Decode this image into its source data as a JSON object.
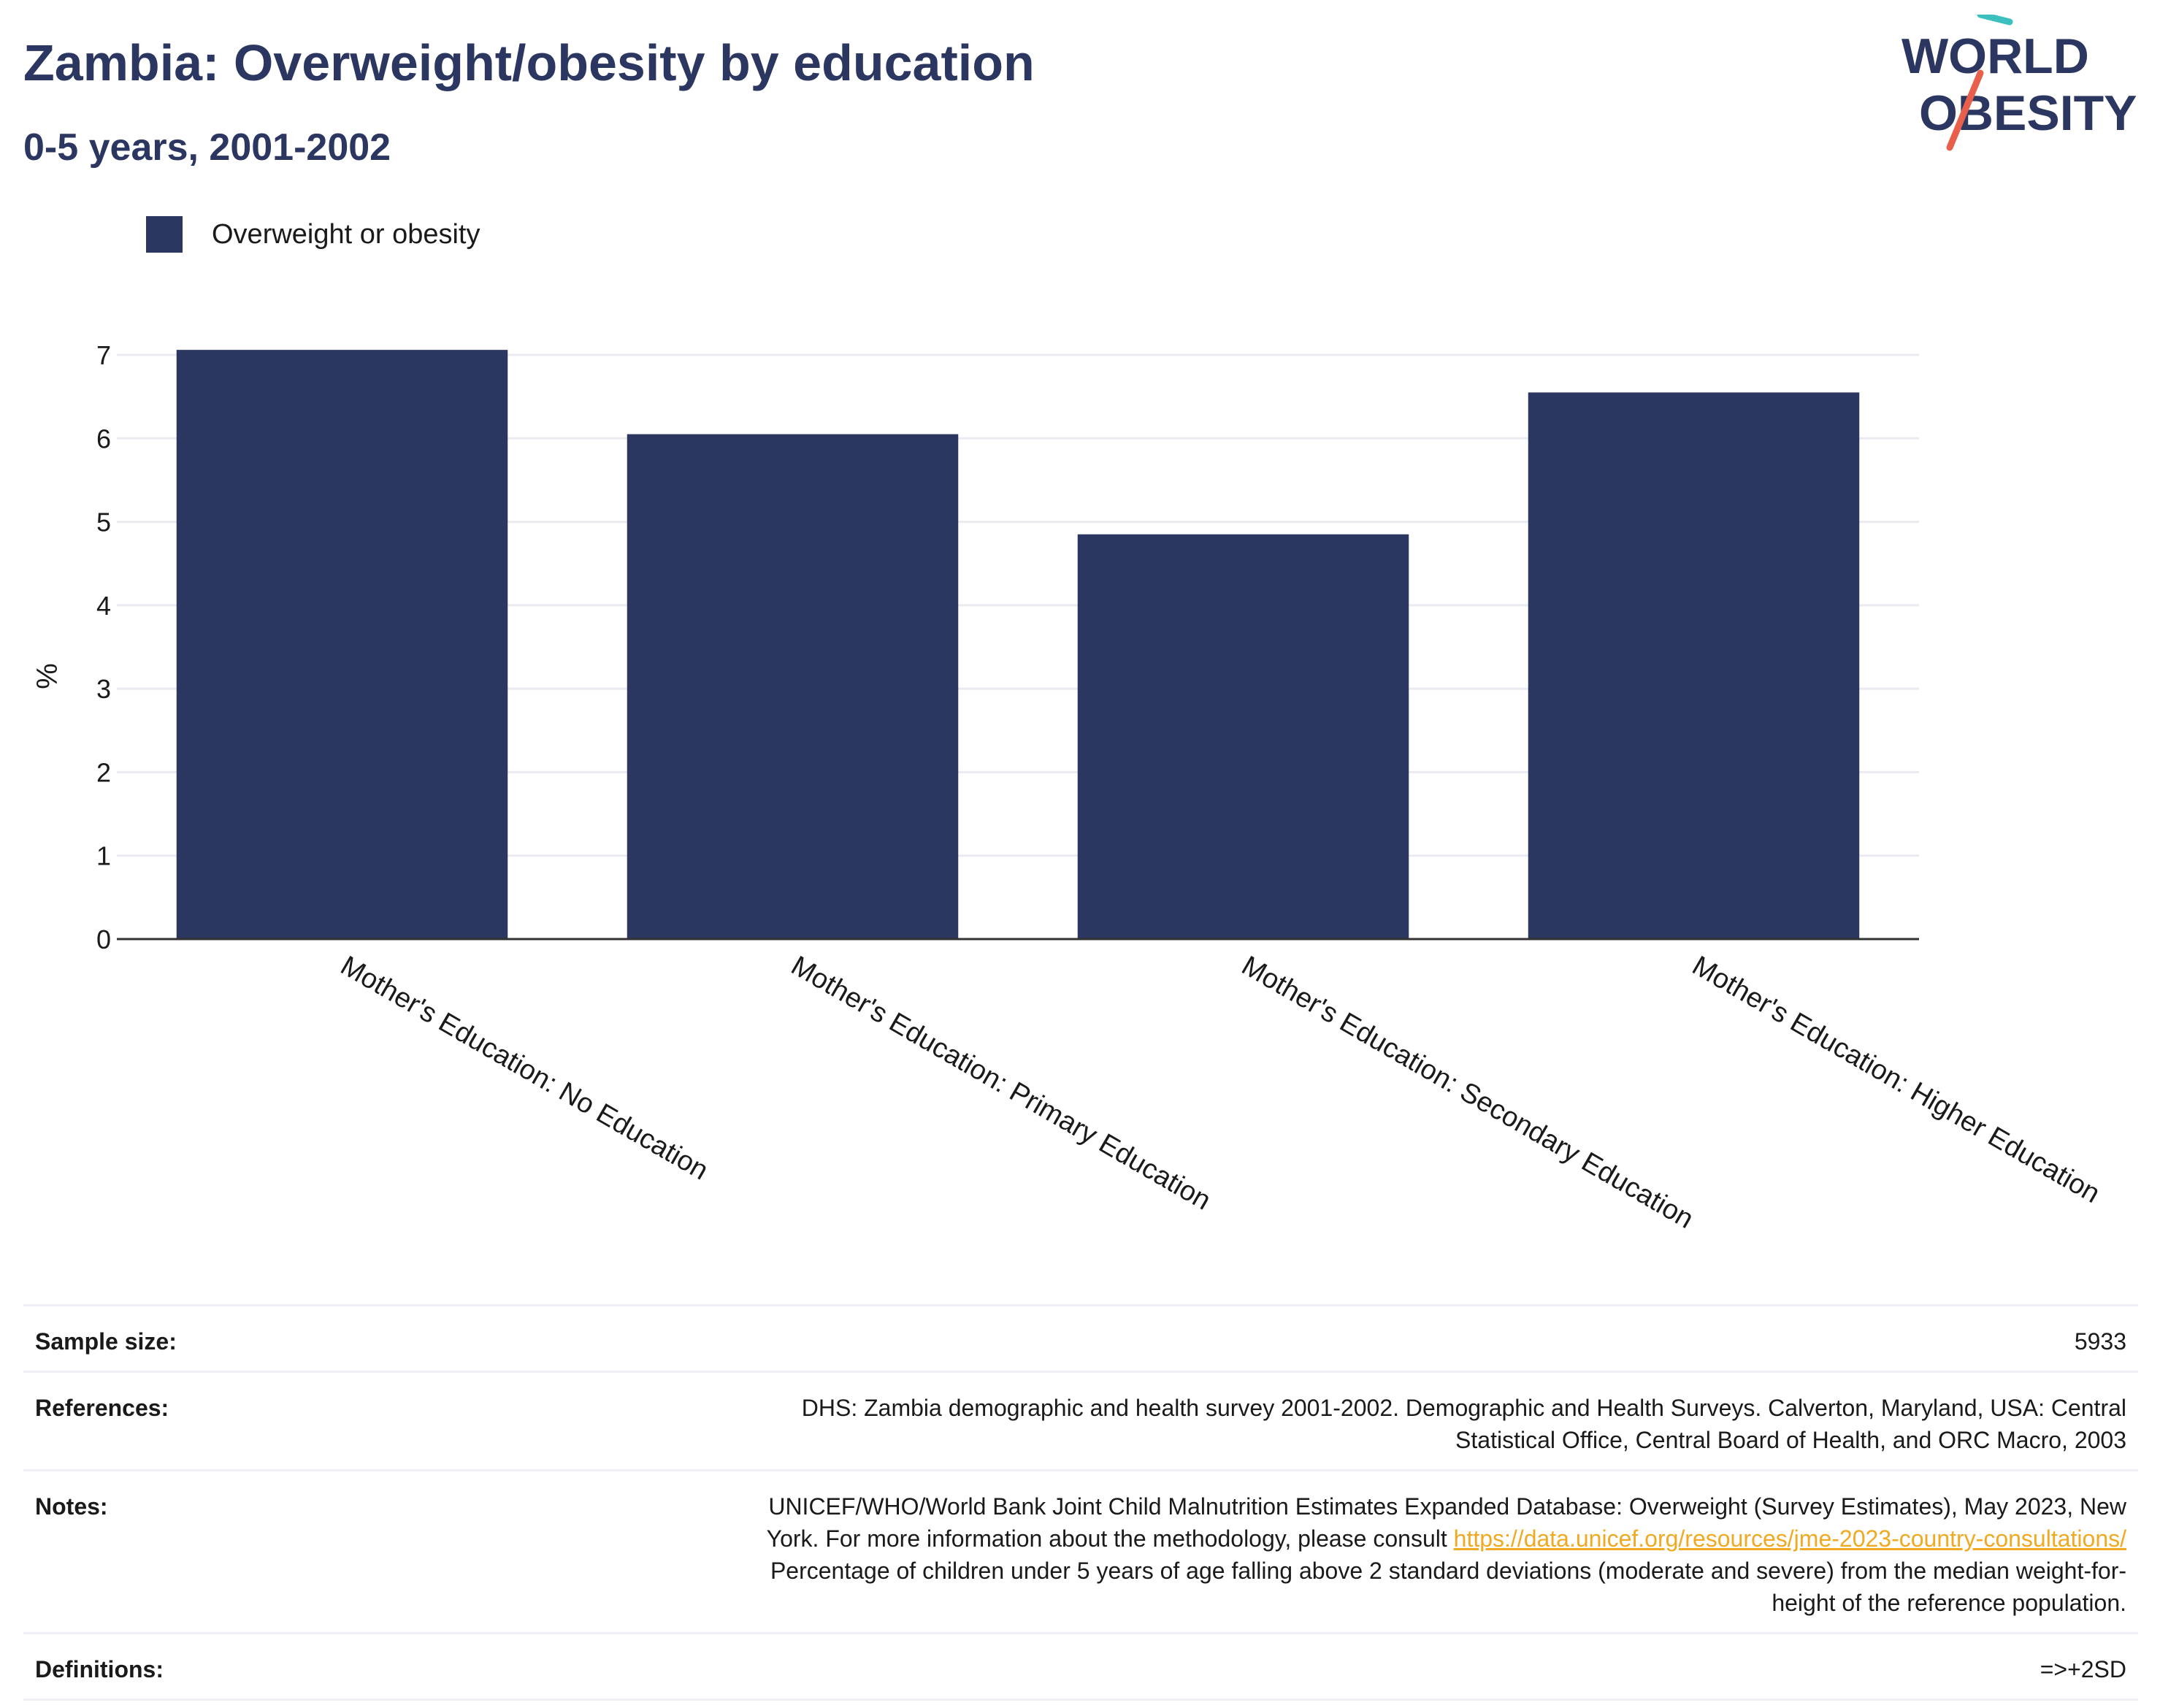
{
  "header": {
    "title": "Zambia: Overweight/obesity by education",
    "subtitle": "0-5 years, 2001-2002"
  },
  "logo": {
    "line1": "WORLD",
    "line2": "OBESITY",
    "colors": [
      "#2b3661",
      "#3bbfbf",
      "#e8604c"
    ]
  },
  "colors": {
    "bar": "#2b3661",
    "grid": "#e9ebf1",
    "axis": "#333333",
    "link": "#f0a920"
  },
  "chart_data": {
    "type": "bar",
    "title": "",
    "xlabel": "",
    "ylabel": "%",
    "ylim": [
      0,
      7
    ],
    "yticks": [
      0,
      1,
      2,
      3,
      4,
      5,
      6,
      7
    ],
    "grid": true,
    "legend_placement": "top-left",
    "categories": [
      "Mother's Education: No Education",
      "Mother's Education: Primary Education",
      "Mother's Education: Secondary Education",
      "Mother's Education: Higher Education"
    ],
    "series": [
      {
        "name": "Overweight or obesity",
        "values": [
          7.06,
          6.05,
          4.85,
          6.55
        ]
      }
    ]
  },
  "info": {
    "sample_size": {
      "label": "Sample size:",
      "value": "5933"
    },
    "references": {
      "label": "References:",
      "line1": "DHS: Zambia demographic and health survey 2001-2002. Demographic and Health Surveys. Calverton, Maryland, USA: Central",
      "line2": "Statistical Office, Central Board of Health, and ORC Macro, 2003"
    },
    "notes": {
      "label": "Notes:",
      "line1": "UNICEF/WHO/World Bank Joint Child Malnutrition Estimates Expanded Database: Overweight (Survey Estimates), May 2023, New",
      "line2_prefix": "York. For more information about the methodology, please consult ",
      "link": "https://data.unicef.org/resources/jme-2023-country-consultations/",
      "line3": "Percentage of children under 5 years of age falling above 2 standard deviations (moderate and severe) from the median weight-for-",
      "line4": "height of the reference population."
    },
    "definitions": {
      "label": "Definitions:",
      "value": "=>+2SD"
    }
  }
}
